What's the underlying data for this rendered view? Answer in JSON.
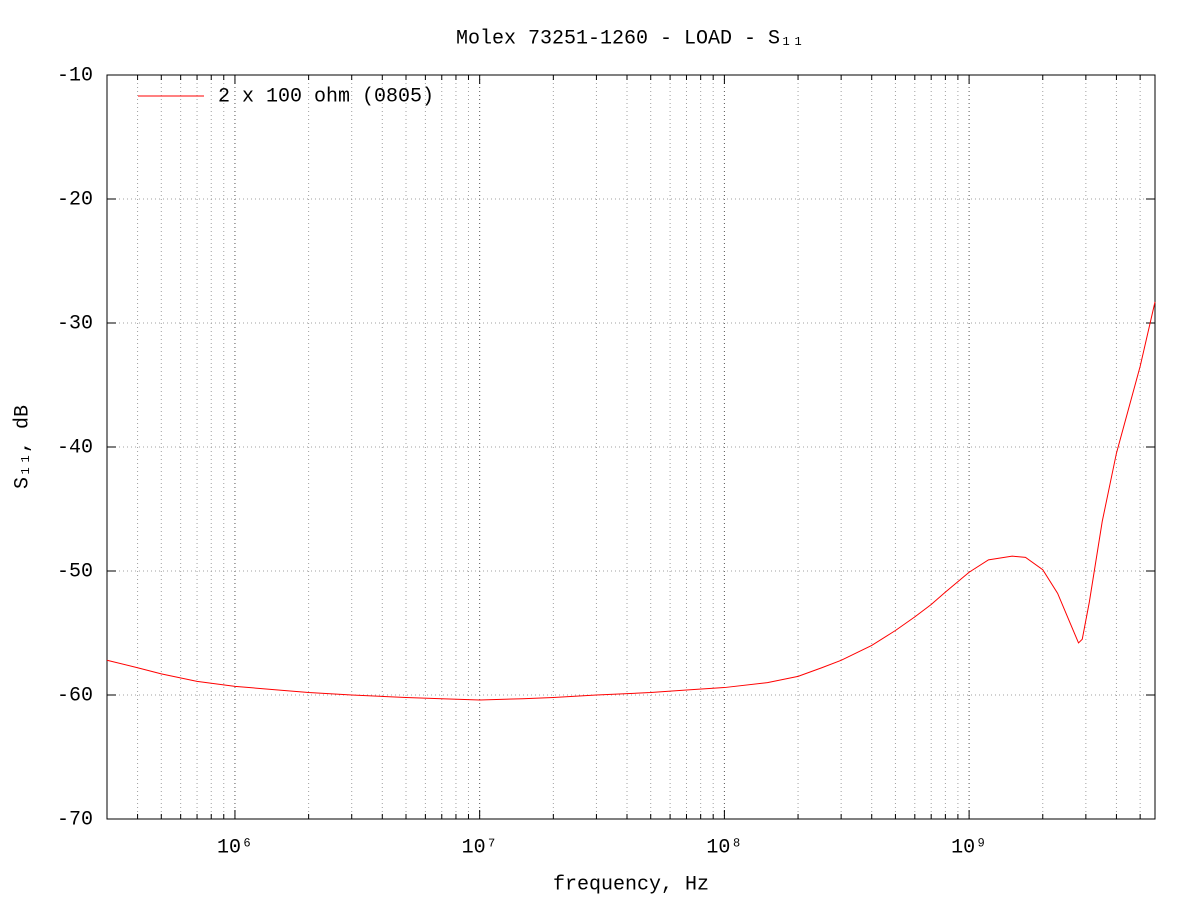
{
  "chart_data": {
    "type": "line",
    "title": "Molex 73251-1260 - LOAD - S₁₁",
    "xlabel": "frequency, Hz",
    "ylabel": "S₁₁, dB",
    "xscale": "log",
    "xlim": [
      300000,
      5750000000
    ],
    "ylim": [
      -70,
      -10
    ],
    "xticks": [
      {
        "value": 1000000,
        "label": "10⁶"
      },
      {
        "value": 10000000,
        "label": "10⁷"
      },
      {
        "value": 100000000,
        "label": "10⁸"
      },
      {
        "value": 1000000000,
        "label": "10⁹"
      }
    ],
    "xminorticks": [
      400000,
      500000,
      600000,
      700000,
      800000,
      900000,
      2000000,
      3000000,
      4000000,
      5000000,
      6000000,
      7000000,
      8000000,
      9000000,
      20000000,
      30000000,
      40000000,
      50000000,
      60000000,
      70000000,
      80000000,
      90000000,
      200000000,
      300000000,
      400000000,
      500000000,
      600000000,
      700000000,
      800000000,
      900000000,
      2000000000,
      3000000000,
      4000000000,
      5000000000
    ],
    "yticks": [
      -70,
      -60,
      -50,
      -40,
      -30,
      -20,
      -10
    ],
    "grid": true,
    "legend": "upper-left",
    "series": [
      {
        "name": "2 x 100 ohm (0805)",
        "color": "#ff0000",
        "x": [
          300000,
          400000,
          500000,
          700000,
          1000000,
          1500000,
          2000000,
          3000000,
          5000000,
          7000000,
          10000000,
          15000000,
          20000000,
          30000000,
          50000000,
          70000000,
          100000000,
          150000000,
          200000000,
          250000000,
          300000000,
          400000000,
          500000000,
          600000000,
          700000000,
          800000000,
          1000000000,
          1200000000,
          1500000000,
          1700000000,
          2000000000,
          2300000000,
          2600000000,
          2800000000,
          2900000000,
          3100000000,
          3500000000,
          4000000000,
          5000000000,
          5750000000
        ],
        "values": [
          -57.2,
          -57.8,
          -58.3,
          -58.9,
          -59.3,
          -59.6,
          -59.8,
          -60.0,
          -60.2,
          -60.3,
          -60.4,
          -60.3,
          -60.2,
          -60.0,
          -59.8,
          -59.6,
          -59.4,
          -59.0,
          -58.5,
          -57.8,
          -57.2,
          -56.0,
          -54.8,
          -53.7,
          -52.7,
          -51.7,
          -50.1,
          -49.1,
          -48.8,
          -48.9,
          -49.9,
          -51.8,
          -54.3,
          -55.8,
          -55.5,
          -52.5,
          -46.0,
          -40.5,
          -33.5,
          -28.3
        ]
      }
    ]
  }
}
